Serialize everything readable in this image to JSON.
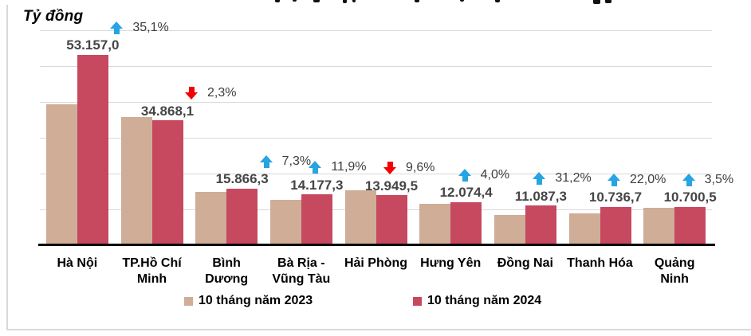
{
  "chart_data": {
    "type": "bar",
    "unit_label": "Tỷ đồng",
    "categories": [
      "Hà Nội",
      "TP.Hồ Chí\nMinh",
      "Bình\nDương",
      "Bà Rịa -\nVũng Tàu",
      "Hải Phòng",
      "Hưng Yên",
      "Đồng Nai",
      "Thanh Hóa",
      "Quảng\nNinh"
    ],
    "series": [
      {
        "name": "10 tháng năm 2023",
        "color": "#CFAD97",
        "values": [
          39346,
          35689,
          14787,
          12670,
          15431,
          11610,
          8451,
          8801,
          10339
        ]
      },
      {
        "name": "10 tháng năm 2024",
        "color": "#C6495F",
        "values": [
          53157.0,
          34868.1,
          15866.3,
          14177.3,
          13949.5,
          12074.4,
          11087.3,
          10736.7,
          10700.5
        ],
        "value_labels": [
          "53.157,0",
          "34.868,1",
          "15.866,3",
          "14.177,3",
          "13.949,5",
          "12.074,4",
          "11.087,3",
          "10.736,7",
          "10.700,5"
        ]
      }
    ],
    "pct_changes": [
      {
        "text": "35,1%",
        "direction": "up"
      },
      {
        "text": "2,3%",
        "direction": "down"
      },
      {
        "text": "7,3%",
        "direction": "up"
      },
      {
        "text": "11,9%",
        "direction": "up"
      },
      {
        "text": "9,6%",
        "direction": "down"
      },
      {
        "text": "4,0%",
        "direction": "up"
      },
      {
        "text": "31,2%",
        "direction": "up"
      },
      {
        "text": "22,0%",
        "direction": "up"
      },
      {
        "text": "3,5%",
        "direction": "up"
      }
    ],
    "arrow_colors": {
      "up": "#27A4E2",
      "down": "#F40000"
    },
    "ylim": [
      0,
      60000
    ],
    "gridline_step": 10000,
    "grid": true,
    "y_tick_labels_visible": false,
    "legend_position": "bottom",
    "gridline_color": "#D9D9D9",
    "axis_color": "#000000"
  }
}
